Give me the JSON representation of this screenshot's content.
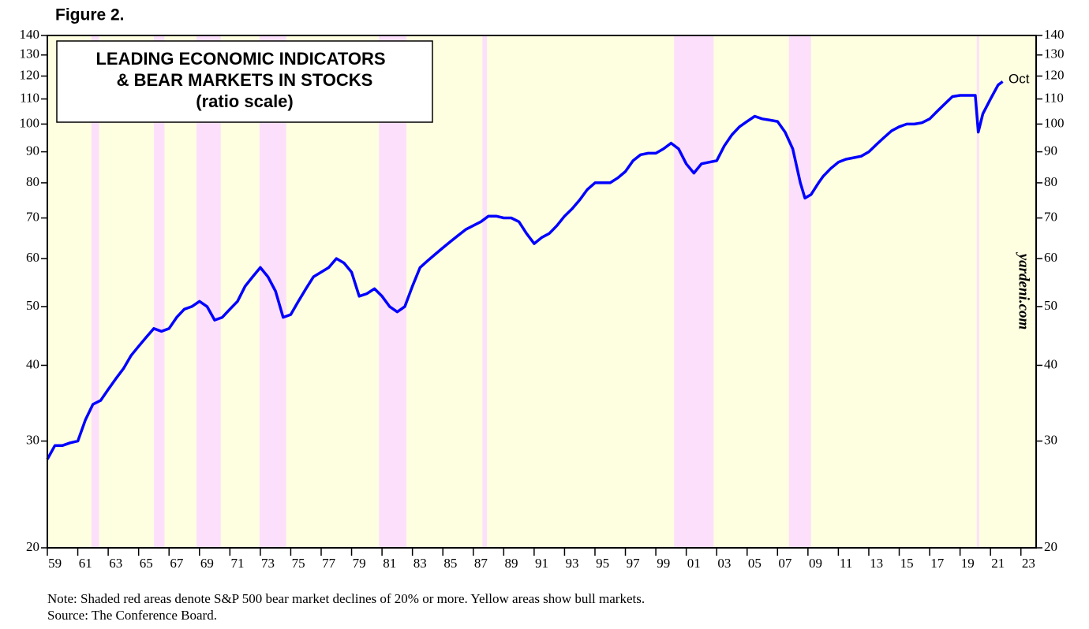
{
  "chart_data": {
    "type": "line",
    "figure_label": "Figure 2.",
    "title": [
      "LEADING ECONOMIC INDICATORS",
      "& BEAR MARKETS IN STOCKS"
    ],
    "subtitle": "(ratio scale)",
    "annotations": [
      "Oct",
      "yardeni.com"
    ],
    "note": "Note: Shaded red areas denote S&P 500 bear market declines of 20% or more. Yellow areas show bull markets.",
    "source": "Source: The Conference Board.",
    "log_scale": true,
    "bull_color": "#fefee0",
    "bear_color": "#fce0fb",
    "bear_markets": [
      [
        1961.9,
        1962.4
      ],
      [
        1966.0,
        1966.7
      ],
      [
        1968.8,
        1970.4
      ],
      [
        1972.95,
        1974.7
      ],
      [
        1980.8,
        1982.6
      ],
      [
        1987.6,
        1987.9
      ],
      [
        2000.2,
        2002.8
      ],
      [
        2007.75,
        2009.2
      ],
      [
        2020.1,
        2020.25
      ]
    ],
    "xlim": [
      1959,
      2024
    ],
    "xticks": [
      {
        "value": 1959,
        "label": "59"
      },
      {
        "value": 1961,
        "label": "61"
      },
      {
        "value": 1963,
        "label": "63"
      },
      {
        "value": 1965,
        "label": "65"
      },
      {
        "value": 1967,
        "label": "67"
      },
      {
        "value": 1969,
        "label": "69"
      },
      {
        "value": 1971,
        "label": "71"
      },
      {
        "value": 1973,
        "label": "73"
      },
      {
        "value": 1975,
        "label": "75"
      },
      {
        "value": 1977,
        "label": "77"
      },
      {
        "value": 1979,
        "label": "79"
      },
      {
        "value": 1981,
        "label": "81"
      },
      {
        "value": 1983,
        "label": "83"
      },
      {
        "value": 1985,
        "label": "85"
      },
      {
        "value": 1987,
        "label": "87"
      },
      {
        "value": 1989,
        "label": "89"
      },
      {
        "value": 1991,
        "label": "91"
      },
      {
        "value": 1993,
        "label": "93"
      },
      {
        "value": 1995,
        "label": "95"
      },
      {
        "value": 1997,
        "label": "97"
      },
      {
        "value": 1999,
        "label": "99"
      },
      {
        "value": 2001,
        "label": "01"
      },
      {
        "value": 2003,
        "label": "03"
      },
      {
        "value": 2005,
        "label": "05"
      },
      {
        "value": 2007,
        "label": "07"
      },
      {
        "value": 2009,
        "label": "09"
      },
      {
        "value": 2011,
        "label": "11"
      },
      {
        "value": 2013,
        "label": "13"
      },
      {
        "value": 2015,
        "label": "15"
      },
      {
        "value": 2017,
        "label": "17"
      },
      {
        "value": 2019,
        "label": "19"
      },
      {
        "value": 2021,
        "label": "21"
      },
      {
        "value": 2023,
        "label": "23"
      }
    ],
    "ylim": [
      20,
      140
    ],
    "yticks": [
      20,
      30,
      40,
      50,
      60,
      70,
      80,
      90,
      100,
      110,
      120,
      130,
      140
    ],
    "y2lim": [
      20,
      140
    ],
    "y2ticks": [
      20,
      30,
      40,
      50,
      60,
      70,
      80,
      90,
      100,
      110,
      120,
      130,
      140
    ],
    "series": [
      {
        "color": "#0000ff",
        "x": [
          1959.0,
          1959.5,
          1960.0,
          1960.5,
          1961.0,
          1961.5,
          1962.0,
          1962.5,
          1963.0,
          1963.5,
          1964.0,
          1964.5,
          1965.0,
          1965.5,
          1966.0,
          1966.5,
          1967.0,
          1967.5,
          1968.0,
          1968.5,
          1969.0,
          1969.5,
          1970.0,
          1970.5,
          1971.0,
          1971.5,
          1972.0,
          1972.5,
          1973.0,
          1973.5,
          1974.0,
          1974.5,
          1975.0,
          1975.5,
          1976.0,
          1976.5,
          1977.0,
          1977.5,
          1978.0,
          1978.5,
          1979.0,
          1979.5,
          1980.0,
          1980.5,
          1981.0,
          1981.5,
          1982.0,
          1982.5,
          1983.0,
          1983.5,
          1984.0,
          1984.5,
          1985.0,
          1985.5,
          1986.0,
          1986.5,
          1987.0,
          1987.5,
          1988.0,
          1988.5,
          1989.0,
          1989.5,
          1990.0,
          1990.5,
          1991.0,
          1991.5,
          1992.0,
          1992.5,
          1993.0,
          1993.5,
          1994.0,
          1994.5,
          1995.0,
          1995.5,
          1996.0,
          1996.5,
          1997.0,
          1997.5,
          1998.0,
          1998.5,
          1999.0,
          1999.5,
          2000.0,
          2000.5,
          2001.0,
          2001.5,
          2002.0,
          2002.5,
          2003.0,
          2003.5,
          2004.0,
          2004.5,
          2005.0,
          2005.5,
          2006.0,
          2006.5,
          2007.0,
          2007.5,
          2008.0,
          2008.5,
          2008.8,
          2009.2,
          2009.7,
          2010.0,
          2010.5,
          2011.0,
          2011.5,
          2012.0,
          2012.5,
          2013.0,
          2013.5,
          2014.0,
          2014.5,
          2015.0,
          2015.5,
          2016.0,
          2016.5,
          2017.0,
          2017.5,
          2018.0,
          2018.5,
          2019.0,
          2019.5,
          2020.0,
          2020.2,
          2020.5,
          2021.0,
          2021.5,
          2021.8
        ],
        "values": [
          28,
          29.5,
          29.5,
          29.8,
          30,
          32.5,
          34.5,
          35,
          36.5,
          38,
          39.5,
          41.5,
          43,
          44.5,
          46,
          45.5,
          46,
          48,
          49.5,
          50,
          51,
          50,
          47.5,
          48,
          49.5,
          51,
          54,
          56,
          58,
          56,
          53,
          48,
          48.5,
          51,
          53.5,
          56,
          57,
          58,
          60,
          59,
          57,
          52,
          52.5,
          53.5,
          52,
          50,
          49,
          50,
          54,
          58,
          59.5,
          61,
          62.5,
          64,
          65.5,
          67,
          68,
          69,
          70.5,
          70.5,
          70,
          70,
          69,
          66,
          63.5,
          65,
          66,
          68,
          70.5,
          72.5,
          75,
          78,
          80,
          80,
          80,
          81.5,
          83.5,
          87,
          89,
          89.5,
          89.5,
          91,
          93,
          91,
          86,
          83,
          86,
          86.5,
          87,
          92,
          96,
          99,
          101,
          103,
          102,
          101.5,
          101,
          97,
          91,
          80,
          75.5,
          76.5,
          80,
          82,
          84.5,
          86.5,
          87.5,
          88,
          88.5,
          90,
          92.5,
          95,
          97.5,
          99,
          100,
          100,
          100.5,
          102,
          105,
          108,
          111,
          111.5,
          111.5,
          111.5,
          97,
          104,
          110,
          116,
          117.5
        ]
      }
    ]
  }
}
